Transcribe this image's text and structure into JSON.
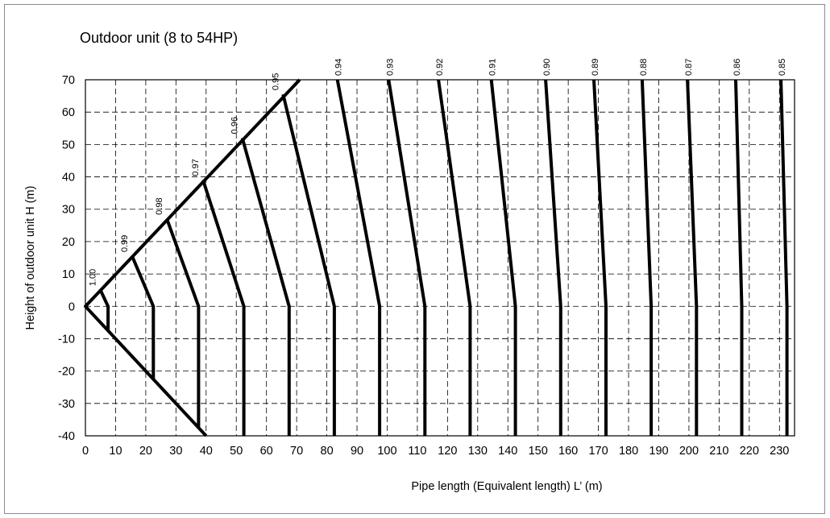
{
  "chart_data": {
    "type": "line",
    "title": "Outdoor unit (8 to 54HP)",
    "xlabel": "Pipe length (Equivalent length) L’ (m)",
    "ylabel": "Height of outdoor unit H (m)",
    "xlim": [
      0,
      235
    ],
    "ylim": [
      -40,
      70
    ],
    "xticks": [
      0,
      10,
      20,
      30,
      40,
      50,
      60,
      70,
      80,
      90,
      100,
      110,
      120,
      130,
      140,
      150,
      160,
      170,
      180,
      190,
      200,
      210,
      220,
      230
    ],
    "yticks": [
      -40,
      -30,
      -20,
      -10,
      0,
      10,
      20,
      30,
      40,
      50,
      60,
      70
    ],
    "grid": true,
    "boundary": [
      {
        "x": 71,
        "y": 70
      },
      {
        "x": 0,
        "y": 0
      },
      {
        "x": 40,
        "y": -40
      }
    ],
    "series": [
      {
        "name": "1.00",
        "points": [
          {
            "x": 5,
            "y": 5
          },
          {
            "x": 7.5,
            "y": 0
          },
          {
            "x": 7.5,
            "y": -7.5
          }
        ]
      },
      {
        "name": "0.99",
        "points": [
          {
            "x": 15.5,
            "y": 15.5
          },
          {
            "x": 22.5,
            "y": 0
          },
          {
            "x": 22.5,
            "y": -22.5
          }
        ]
      },
      {
        "name": "0.98",
        "points": [
          {
            "x": 27,
            "y": 27
          },
          {
            "x": 37.5,
            "y": 0
          },
          {
            "x": 37.5,
            "y": -37.5
          }
        ]
      },
      {
        "name": "0.97",
        "points": [
          {
            "x": 39,
            "y": 39
          },
          {
            "x": 52.5,
            "y": 0
          },
          {
            "x": 52.5,
            "y": -40
          }
        ]
      },
      {
        "name": "0.96",
        "points": [
          {
            "x": 52,
            "y": 52
          },
          {
            "x": 67.5,
            "y": 0
          },
          {
            "x": 67.5,
            "y": -40
          }
        ]
      },
      {
        "name": "0.95",
        "points": [
          {
            "x": 65.5,
            "y": 65.5
          },
          {
            "x": 82.5,
            "y": 0
          },
          {
            "x": 82.5,
            "y": -40
          }
        ]
      },
      {
        "name": "0.94",
        "points": [
          {
            "x": 83.5,
            "y": 70
          },
          {
            "x": 97.5,
            "y": 0
          },
          {
            "x": 97.5,
            "y": -40
          }
        ]
      },
      {
        "name": "0.93",
        "points": [
          {
            "x": 100.5,
            "y": 70
          },
          {
            "x": 112.5,
            "y": 0
          },
          {
            "x": 112.5,
            "y": -40
          }
        ]
      },
      {
        "name": "0.92",
        "points": [
          {
            "x": 117,
            "y": 70
          },
          {
            "x": 127.5,
            "y": 0
          },
          {
            "x": 127.5,
            "y": -40
          }
        ]
      },
      {
        "name": "0.91",
        "points": [
          {
            "x": 134.5,
            "y": 70
          },
          {
            "x": 142.5,
            "y": 0
          },
          {
            "x": 142.5,
            "y": -40
          }
        ]
      },
      {
        "name": "0.90",
        "points": [
          {
            "x": 152.5,
            "y": 70
          },
          {
            "x": 157.5,
            "y": 0
          },
          {
            "x": 157.5,
            "y": -40
          }
        ]
      },
      {
        "name": "0.89",
        "points": [
          {
            "x": 168.5,
            "y": 70
          },
          {
            "x": 172.5,
            "y": 0
          },
          {
            "x": 172.5,
            "y": -40
          }
        ]
      },
      {
        "name": "0.88",
        "points": [
          {
            "x": 184.5,
            "y": 70
          },
          {
            "x": 187.5,
            "y": 0
          },
          {
            "x": 187.5,
            "y": -40
          }
        ]
      },
      {
        "name": "0.87",
        "points": [
          {
            "x": 199.5,
            "y": 70
          },
          {
            "x": 202.5,
            "y": 0
          },
          {
            "x": 202.5,
            "y": -40
          }
        ]
      },
      {
        "name": "0.86",
        "points": [
          {
            "x": 215.5,
            "y": 70
          },
          {
            "x": 217.5,
            "y": 0
          },
          {
            "x": 217.5,
            "y": -40
          }
        ]
      },
      {
        "name": "0.85",
        "points": [
          {
            "x": 230.5,
            "y": 70
          },
          {
            "x": 232.5,
            "y": 0
          },
          {
            "x": 232.5,
            "y": -40
          }
        ]
      }
    ]
  }
}
